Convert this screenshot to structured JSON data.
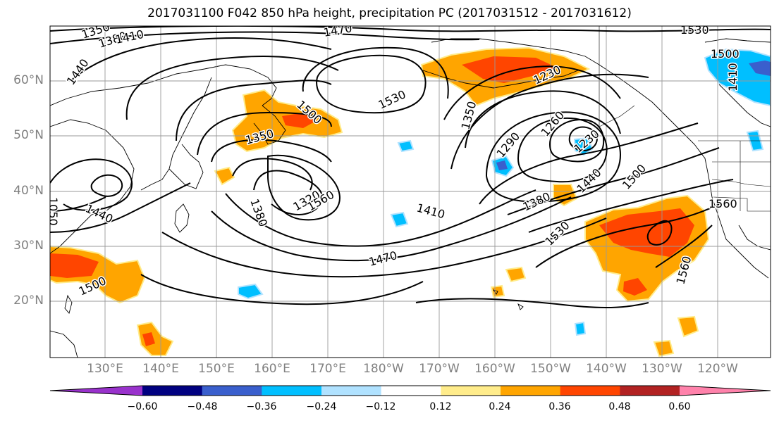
{
  "title": "2017031100 F042 850 hPa height, precipitation PC (2017031512 - 2017031612)",
  "map": {
    "lon_labels": [
      "130°E",
      "140°E",
      "150°E",
      "160°E",
      "170°E",
      "180°W",
      "170°W",
      "160°W",
      "150°W",
      "140°W",
      "130°W",
      "120°W"
    ],
    "lat_labels": [
      "60°N",
      "50°N",
      "40°N",
      "30°N",
      "20°N"
    ],
    "contour_labels": [
      "1350",
      "1380",
      "1410",
      "1440",
      "1470",
      "1500",
      "1530",
      "1500",
      "1350",
      "1320",
      "1380",
      "1410",
      "1470",
      "1530",
      "1350",
      "1230",
      "1290",
      "1260",
      "1230",
      "1380",
      "1440",
      "1500",
      "1560",
      "1560",
      "1530",
      "1410",
      "1050",
      "1500",
      "1440",
      "1560"
    ]
  },
  "colorbar": {
    "ticks": [
      "−0.60",
      "−0.48",
      "−0.36",
      "−0.24",
      "−0.12",
      "0.12",
      "0.24",
      "0.36",
      "0.48",
      "0.60"
    ],
    "colors": [
      "#9932cc",
      "#000080",
      "#3a5fcd",
      "#00bfff",
      "#b0e2ff",
      "#ffffff",
      "#ffec8b",
      "#ffa500",
      "#ff4500",
      "#b22222",
      "#ff82ab"
    ]
  }
}
